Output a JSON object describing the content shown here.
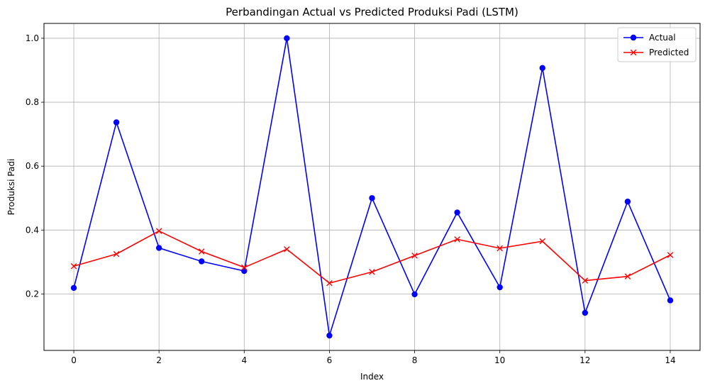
{
  "chart_data": {
    "type": "line",
    "title": "Perbandingan Actual vs Predicted Produksi Padi (LSTM)",
    "xlabel": "Index",
    "ylabel": "Produksi Padi",
    "xlim": [
      -0.7,
      14.7
    ],
    "ylim": [
      0.0235,
      1.0465
    ],
    "xticks": [
      0,
      2,
      4,
      6,
      8,
      10,
      12,
      14
    ],
    "xtick_labels": [
      "0",
      "2",
      "4",
      "6",
      "8",
      "10",
      "12",
      "14"
    ],
    "yticks": [
      0.2,
      0.4,
      0.6,
      0.8,
      1.0
    ],
    "ytick_labels": [
      "0.2",
      "0.4",
      "0.6",
      "0.8",
      "1.0"
    ],
    "grid": true,
    "legend": "top-right",
    "x": [
      0,
      1,
      2,
      3,
      4,
      5,
      6,
      7,
      8,
      9,
      10,
      11,
      12,
      13,
      14
    ],
    "series": [
      {
        "name": "Actual",
        "color": "#0000ff",
        "marker": "circle",
        "values": [
          0.219,
          0.737,
          0.344,
          0.302,
          0.272,
          1.0,
          0.07,
          0.5,
          0.199,
          0.455,
          0.221,
          0.907,
          0.141,
          0.489,
          0.18
        ]
      },
      {
        "name": "Predicted",
        "color": "#ff0000",
        "marker": "x",
        "values": [
          0.287,
          0.325,
          0.397,
          0.333,
          0.283,
          0.34,
          0.234,
          0.269,
          0.32,
          0.371,
          0.343,
          0.365,
          0.242,
          0.255,
          0.322
        ]
      }
    ]
  }
}
